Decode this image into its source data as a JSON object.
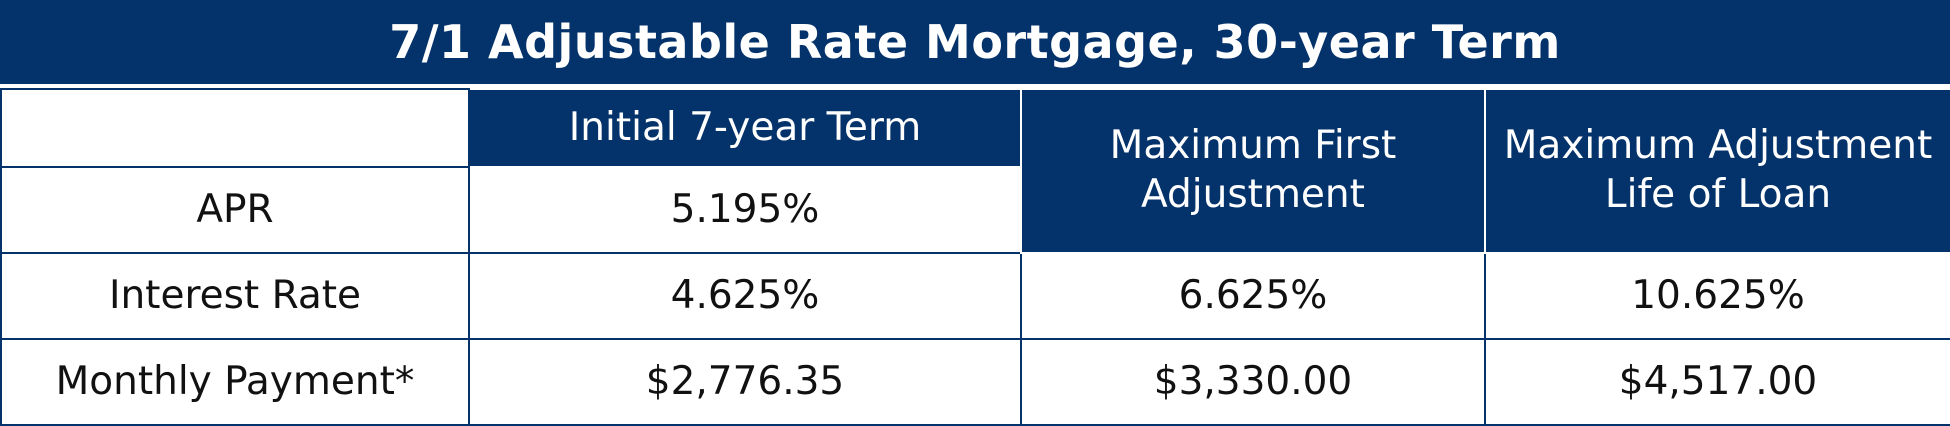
{
  "title": "7/1 Adjustable Rate Mortgage, 30-year Term",
  "colors": {
    "header_bg": "#04326a",
    "header_text": "#ffffff",
    "body_text": "#111111"
  },
  "headers": {
    "initial": "Initial 7-year Term",
    "max_first_line1": "Maximum First",
    "max_first_line2": "Adjustment",
    "max_life_line1": "Maximum Adjustment",
    "max_life_line2": "Life of Loan"
  },
  "rows": {
    "apr": {
      "label": "APR",
      "initial": "5.195%"
    },
    "interest": {
      "label": "Interest Rate",
      "initial": "4.625%",
      "max_first": "6.625%",
      "max_life": "10.625%"
    },
    "payment": {
      "label": "Monthly Payment*",
      "initial": "$2,776.35",
      "max_first": "$3,330.00",
      "max_life": "$4,517.00"
    }
  }
}
